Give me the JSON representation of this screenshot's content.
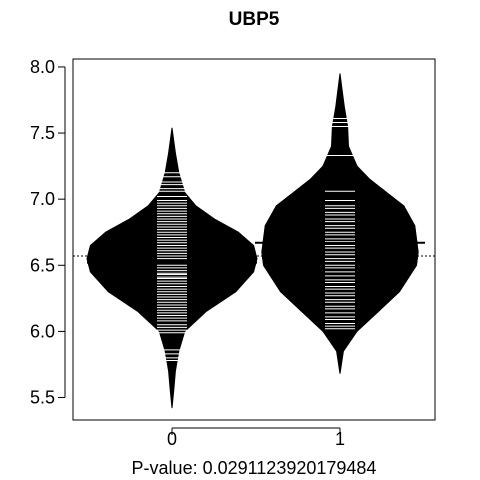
{
  "chart_data": {
    "type": "beanplot",
    "title": "UBP5",
    "xlabel": "P-value: 0.0291123920179484",
    "ylabel": "",
    "categories": [
      "0",
      "1"
    ],
    "ylim": [
      5.33,
      8.06
    ],
    "yticks": [
      5.5,
      6.0,
      6.5,
      7.0,
      7.5,
      8.0
    ],
    "ytick_labels": [
      "5.5",
      "6.0",
      "6.5",
      "7.0",
      "7.5",
      "8.0"
    ],
    "overall_mean": 6.57,
    "groups": [
      {
        "name": "0",
        "mean": 6.52,
        "range": [
          5.42,
          7.54
        ],
        "density": [
          [
            5.42,
            0.0
          ],
          [
            5.55,
            0.02
          ],
          [
            5.7,
            0.04
          ],
          [
            5.85,
            0.08
          ],
          [
            6.0,
            0.15
          ],
          [
            6.15,
            0.4
          ],
          [
            6.3,
            0.75
          ],
          [
            6.45,
            0.96
          ],
          [
            6.55,
            1.0
          ],
          [
            6.65,
            0.96
          ],
          [
            6.75,
            0.78
          ],
          [
            6.85,
            0.5
          ],
          [
            6.95,
            0.28
          ],
          [
            7.05,
            0.15
          ],
          [
            7.2,
            0.08
          ],
          [
            7.35,
            0.04
          ],
          [
            7.54,
            0.0
          ]
        ],
        "observations": [
          5.78,
          5.8,
          5.83,
          5.86,
          5.99,
          6.01,
          6.03,
          6.05,
          6.08,
          6.1,
          6.12,
          6.14,
          6.16,
          6.18,
          6.2,
          6.22,
          6.24,
          6.26,
          6.28,
          6.3,
          6.32,
          6.34,
          6.36,
          6.38,
          6.4,
          6.41,
          6.43,
          6.44,
          6.46,
          6.48,
          6.5,
          6.52,
          6.55,
          6.57,
          6.59,
          6.61,
          6.63,
          6.65,
          6.67,
          6.69,
          6.71,
          6.73,
          6.75,
          6.77,
          6.79,
          6.81,
          6.83,
          6.85,
          6.87,
          6.89,
          6.91,
          6.93,
          6.95,
          6.97,
          6.99,
          7.02,
          7.06,
          7.08,
          7.11,
          7.13,
          7.17,
          7.2
        ]
      },
      {
        "name": "1",
        "mean": 6.67,
        "range": [
          5.68,
          7.95
        ],
        "density": [
          [
            5.68,
            0.0
          ],
          [
            5.85,
            0.04
          ],
          [
            6.0,
            0.2
          ],
          [
            6.15,
            0.45
          ],
          [
            6.3,
            0.7
          ],
          [
            6.5,
            0.9
          ],
          [
            6.6,
            0.92
          ],
          [
            6.7,
            0.9
          ],
          [
            6.8,
            0.88
          ],
          [
            6.95,
            0.75
          ],
          [
            7.05,
            0.55
          ],
          [
            7.15,
            0.35
          ],
          [
            7.25,
            0.2
          ],
          [
            7.4,
            0.1
          ],
          [
            7.55,
            0.09
          ],
          [
            7.7,
            0.05
          ],
          [
            7.85,
            0.02
          ],
          [
            7.95,
            0.0
          ]
        ],
        "observations": [
          6.02,
          6.04,
          6.06,
          6.09,
          6.11,
          6.14,
          6.17,
          6.19,
          6.22,
          6.24,
          6.27,
          6.29,
          6.32,
          6.34,
          6.37,
          6.39,
          6.42,
          6.45,
          6.48,
          6.5,
          6.53,
          6.55,
          6.58,
          6.6,
          6.63,
          6.65,
          6.68,
          6.7,
          6.73,
          6.75,
          6.78,
          6.8,
          6.83,
          6.85,
          6.88,
          6.9,
          6.93,
          6.95,
          6.99,
          7.06,
          7.33,
          7.55,
          7.58,
          7.61
        ]
      }
    ]
  }
}
